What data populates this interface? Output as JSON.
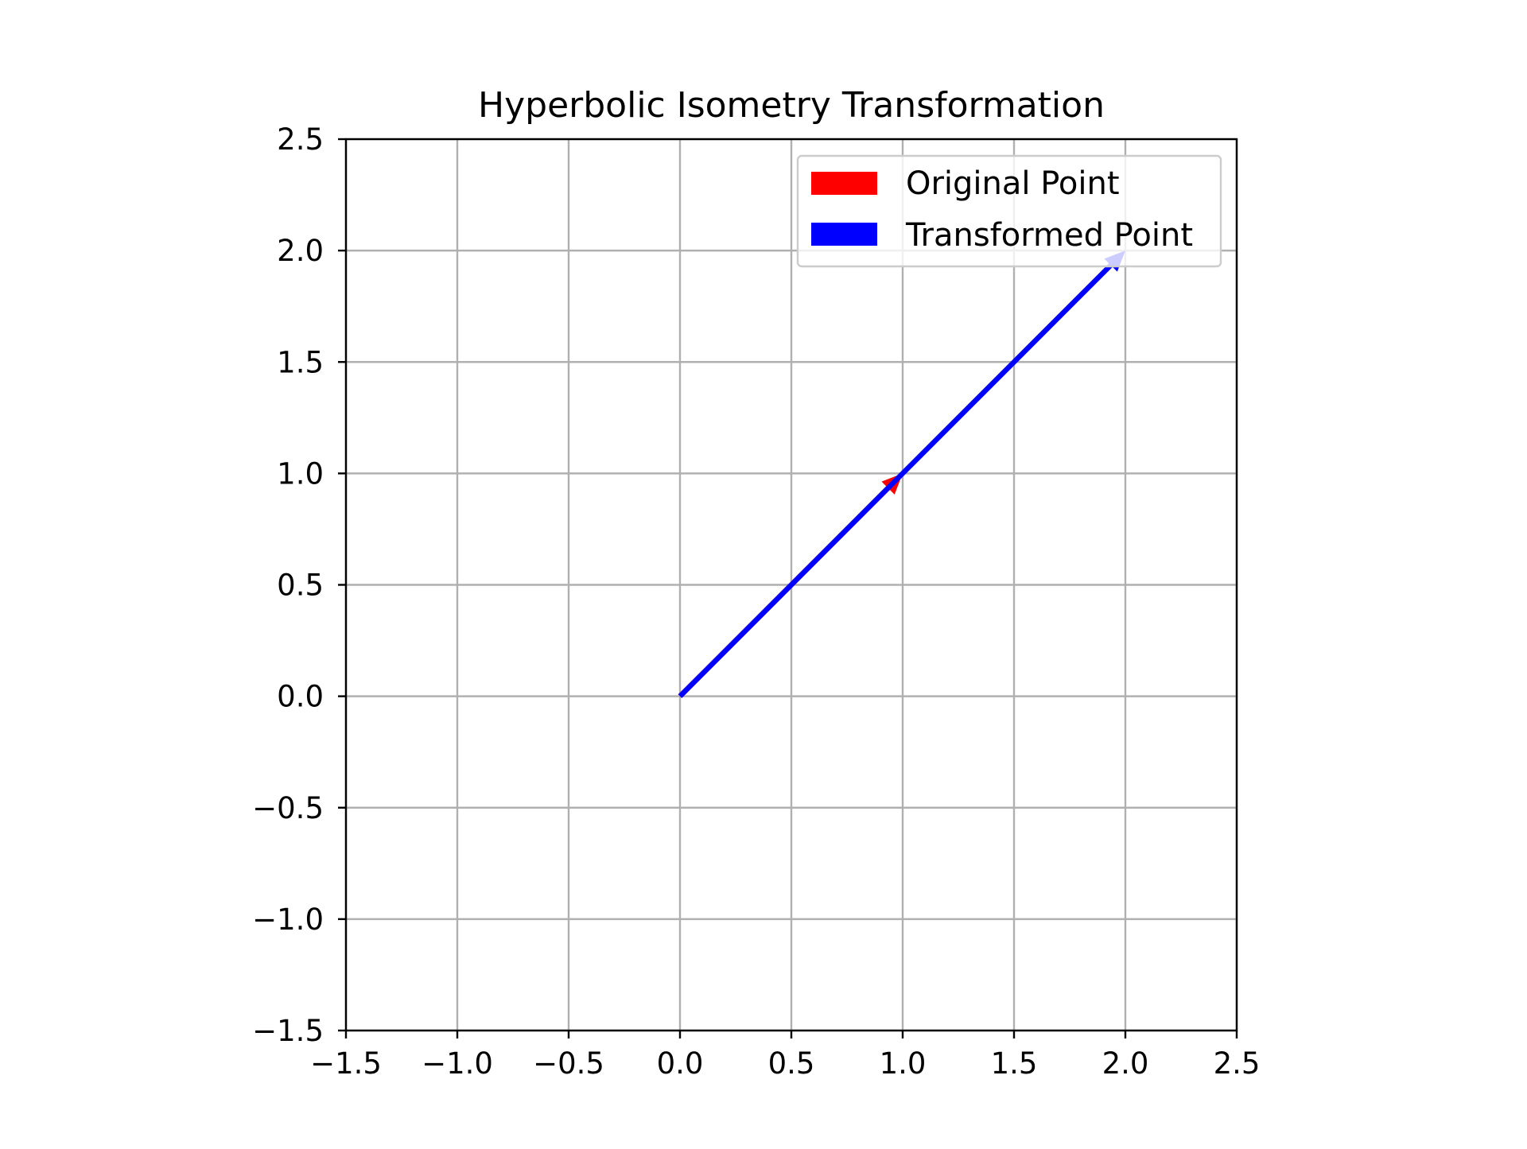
{
  "chart_data": {
    "type": "quiver",
    "title": "Hyperbolic Isometry Transformation",
    "xlabel": "",
    "ylabel": "",
    "xlim": [
      -1.5,
      2.5
    ],
    "ylim": [
      -1.5,
      2.5
    ],
    "xticks": [
      "−1.5",
      "−1.0",
      "−0.5",
      "0.0",
      "0.5",
      "1.0",
      "1.5",
      "2.0",
      "2.5"
    ],
    "yticks": [
      "−1.5",
      "−1.0",
      "−0.5",
      "0.0",
      "0.5",
      "1.0",
      "1.5",
      "2.0",
      "2.5"
    ],
    "xtick_values": [
      -1.5,
      -1.0,
      -0.5,
      0.0,
      0.5,
      1.0,
      1.5,
      2.0,
      2.5
    ],
    "ytick_values": [
      -1.5,
      -1.0,
      -0.5,
      0.0,
      0.5,
      1.0,
      1.5,
      2.0,
      2.5
    ],
    "grid": true,
    "legend_position": "upper right",
    "series": [
      {
        "name": "Original Point",
        "color": "#ff0000",
        "start": [
          0,
          0
        ],
        "end": [
          1,
          1
        ]
      },
      {
        "name": "Transformed Point",
        "color": "#0000ff",
        "start": [
          0,
          0
        ],
        "end": [
          2,
          2
        ]
      }
    ]
  }
}
